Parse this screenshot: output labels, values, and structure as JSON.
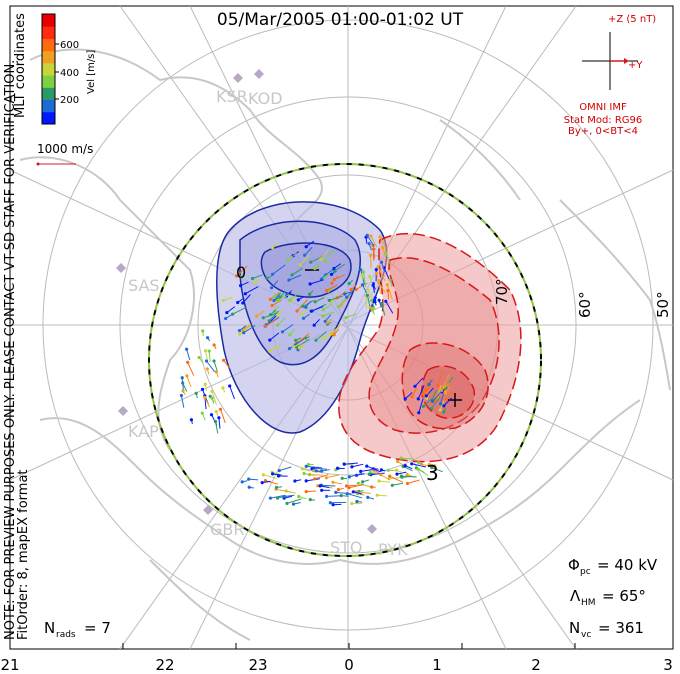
{
  "title": "05/Mar/2005 01:00-01:02 UT",
  "colorbar": {
    "label": "Vel [m/s]",
    "ticks": [
      "600",
      "400",
      "200"
    ],
    "colors": [
      "#0018ff",
      "#1e6ad8",
      "#2a9a6a",
      "#7fd040",
      "#c8d43a",
      "#f0a020",
      "#ff6a10",
      "#ff2a10",
      "#e80000"
    ]
  },
  "coordinates_label": "MLT coordinates",
  "reference_vector": "1000 m/s",
  "imf": {
    "z_label": "+Z (5 nT)",
    "y_label": "+Y",
    "source": "OMNI IMF",
    "model": "Stat Mod: RG96",
    "condition": "By+, 0<BT<4"
  },
  "latitude_labels": [
    "70°",
    "60°",
    "50°"
  ],
  "stations": [
    "KSR",
    "KOD",
    "SAS",
    "KAP",
    "GBR",
    "STO",
    "PYK"
  ],
  "contour_labels": [
    "0",
    "3",
    "-"
  ],
  "watermark": "NOTE: FOR PREVIEW PURPOSES ONLY. PLEASE CONTACT VT-SD STAFF FOR VERIFICATION.",
  "fit_info": "FitOrder: 8, mapEX format",
  "stats": {
    "nrads_label": "N",
    "nrads_sub": "rads",
    "nrads_value": "= 7",
    "phi_label": "Φ",
    "phi_sub": "pc",
    "phi_value": "= 40 kV",
    "lambda_label": "Λ",
    "lambda_sub": "HM",
    "lambda_value": "= 65°",
    "nvc_label": "N",
    "nvc_sub": "vc",
    "nvc_value": "= 361"
  },
  "mlt_axis": [
    "21",
    "22",
    "23",
    "0",
    "1",
    "2",
    "3"
  ],
  "colors": {
    "positive_cell": "#ec9c9c",
    "negative_cell": "#b8b8e8",
    "positive_contour": "#d81818",
    "negative_contour": "#1a2aa0",
    "land": "#c8c8c8",
    "grid": "#bbbbbb"
  }
}
